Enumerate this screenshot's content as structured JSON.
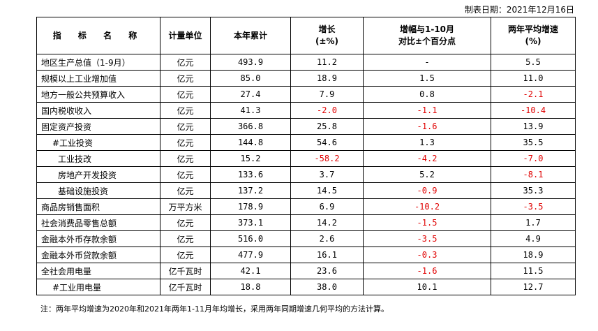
{
  "date_label": "制表日期：2021年12月16日",
  "headers": {
    "indicator": "指 标 名 称",
    "unit": "计量单位",
    "cumulative": "本年累计",
    "growth_l1": "增长",
    "growth_l2": "(±%)",
    "change_l1": "增幅与1-10月",
    "change_l2": "对比±个百分点",
    "twoyear_l1": "两年平均增速",
    "twoyear_l2": "(%)"
  },
  "negative_color": "#e00000",
  "rows": [
    {
      "name": "地区生产总值（1-9月）",
      "indent": 0,
      "unit": "亿元",
      "value": "493.9",
      "growth": "11.2",
      "change": "-",
      "twoyear": "5.5",
      "growth_neg": false,
      "change_neg": false,
      "twoyear_neg": false
    },
    {
      "name": "规模以上工业增加值",
      "indent": 0,
      "unit": "亿元",
      "value": "85.0",
      "growth": "18.9",
      "change": "1.5",
      "twoyear": "11.0",
      "growth_neg": false,
      "change_neg": false,
      "twoyear_neg": false
    },
    {
      "name": "地方一般公共预算收入",
      "indent": 0,
      "unit": "亿元",
      "value": "27.4",
      "growth": "7.9",
      "change": "0.8",
      "twoyear": "-2.1",
      "growth_neg": false,
      "change_neg": false,
      "twoyear_neg": true
    },
    {
      "name": "国内税收收入",
      "indent": 0,
      "unit": "亿元",
      "value": "41.3",
      "growth": "-2.0",
      "change": "-1.1",
      "twoyear": "-10.4",
      "growth_neg": true,
      "change_neg": true,
      "twoyear_neg": true
    },
    {
      "name": "固定资产投资",
      "indent": 0,
      "unit": "亿元",
      "value": "366.8",
      "growth": "25.8",
      "change": "-1.6",
      "twoyear": "13.9",
      "growth_neg": false,
      "change_neg": true,
      "twoyear_neg": false
    },
    {
      "name": "#工业投资",
      "indent": 1,
      "unit": "亿元",
      "value": "144.8",
      "growth": "54.6",
      "change": "1.3",
      "twoyear": "35.5",
      "growth_neg": false,
      "change_neg": false,
      "twoyear_neg": false
    },
    {
      "name": "工业技改",
      "indent": 2,
      "unit": "亿元",
      "value": "15.2",
      "growth": "-58.2",
      "change": "-4.2",
      "twoyear": "-7.0",
      "growth_neg": true,
      "change_neg": true,
      "twoyear_neg": true
    },
    {
      "name": "房地产开发投资",
      "indent": 2,
      "unit": "亿元",
      "value": "133.6",
      "growth": "3.7",
      "change": "5.2",
      "twoyear": "-8.1",
      "growth_neg": false,
      "change_neg": false,
      "twoyear_neg": true
    },
    {
      "name": "基础设施投资",
      "indent": 2,
      "unit": "亿元",
      "value": "137.2",
      "growth": "14.5",
      "change": "-0.9",
      "twoyear": "35.3",
      "growth_neg": false,
      "change_neg": true,
      "twoyear_neg": false
    },
    {
      "name": "商品房销售面积",
      "indent": 0,
      "unit": "万平方米",
      "value": "178.9",
      "growth": "6.9",
      "change": "-10.2",
      "twoyear": "-3.5",
      "growth_neg": false,
      "change_neg": true,
      "twoyear_neg": true
    },
    {
      "name": "社会消费品零售总额",
      "indent": 0,
      "unit": "亿元",
      "value": "373.1",
      "growth": "14.2",
      "change": "-1.5",
      "twoyear": "1.7",
      "growth_neg": false,
      "change_neg": true,
      "twoyear_neg": false
    },
    {
      "name": "金融本外币存款余额",
      "indent": 0,
      "unit": "亿元",
      "value": "516.0",
      "growth": "2.6",
      "change": "-3.5",
      "twoyear": "4.9",
      "growth_neg": false,
      "change_neg": true,
      "twoyear_neg": false
    },
    {
      "name": "金融本外币贷款余额",
      "indent": 0,
      "unit": "亿元",
      "value": "477.9",
      "growth": "16.1",
      "change": "-0.3",
      "twoyear": "18.9",
      "growth_neg": false,
      "change_neg": true,
      "twoyear_neg": false
    },
    {
      "name": "全社会用电量",
      "indent": 0,
      "unit": "亿千瓦时",
      "value": "42.1",
      "growth": "23.6",
      "change": "-1.6",
      "twoyear": "11.5",
      "growth_neg": false,
      "change_neg": true,
      "twoyear_neg": false
    },
    {
      "name": "#工业用电量",
      "indent": 1,
      "unit": "亿千瓦时",
      "value": "18.8",
      "growth": "38.0",
      "change": "10.1",
      "twoyear": "12.7",
      "growth_neg": false,
      "change_neg": false,
      "twoyear_neg": false
    }
  ],
  "note": "注：两年平均增速为2020年和2021年两年1-11月年均增长，采用两年同期增速几何平均的方法计算。"
}
